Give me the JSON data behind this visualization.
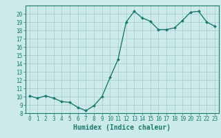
{
  "title": "",
  "xlabel": "Humidex (Indice chaleur)",
  "ylabel": "",
  "x": [
    0,
    1,
    2,
    3,
    4,
    5,
    6,
    7,
    8,
    9,
    10,
    11,
    12,
    13,
    14,
    15,
    16,
    17,
    18,
    19,
    20,
    21,
    22,
    23
  ],
  "y": [
    10.1,
    9.8,
    10.1,
    9.8,
    9.4,
    9.3,
    8.7,
    8.3,
    8.9,
    10.0,
    12.3,
    14.5,
    19.0,
    20.3,
    19.5,
    19.1,
    18.1,
    18.1,
    18.3,
    19.2,
    20.2,
    20.3,
    19.0,
    18.5
  ],
  "line_color": "#1a7a6e",
  "marker": "D",
  "marker_size": 2.0,
  "line_width": 1.0,
  "bg_color": "#cceaea",
  "grid_color": "#a0cccc",
  "xlim": [
    -0.5,
    23.5
  ],
  "ylim": [
    8,
    21
  ],
  "yticks": [
    8,
    9,
    10,
    11,
    12,
    13,
    14,
    15,
    16,
    17,
    18,
    19,
    20
  ],
  "xticks": [
    0,
    1,
    2,
    3,
    4,
    5,
    6,
    7,
    8,
    9,
    10,
    11,
    12,
    13,
    14,
    15,
    16,
    17,
    18,
    19,
    20,
    21,
    22,
    23
  ],
  "tick_fontsize": 5.5,
  "xlabel_fontsize": 7.0,
  "xlabel_fontweight": "bold"
}
